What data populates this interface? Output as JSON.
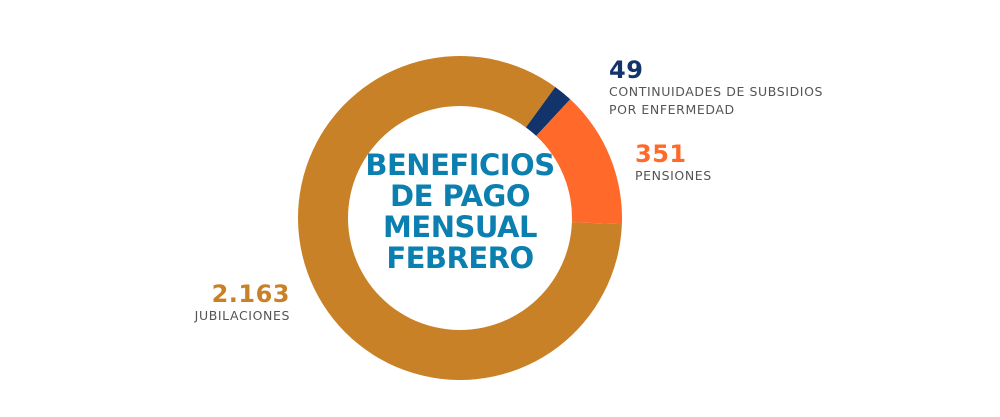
{
  "chart_data": {
    "type": "pie",
    "center_title": [
      "BENEFICIOS",
      "DE PAGO",
      "MENSUAL",
      "FEBRERO"
    ],
    "slices": [
      {
        "value": 49,
        "value_label": "49",
        "label_lines": [
          "CONTINUIDADES DE SUBSIDIOS",
          "POR ENFERMEDAD"
        ],
        "color": "#13336b"
      },
      {
        "value": 351,
        "value_label": "351",
        "label_lines": [
          "PENSIONES"
        ],
        "color": "#ff6a2b"
      },
      {
        "value": 2163,
        "value_label": "2.163",
        "label_lines": [
          "JUBILACIONES"
        ],
        "color": "#c88127"
      }
    ]
  }
}
